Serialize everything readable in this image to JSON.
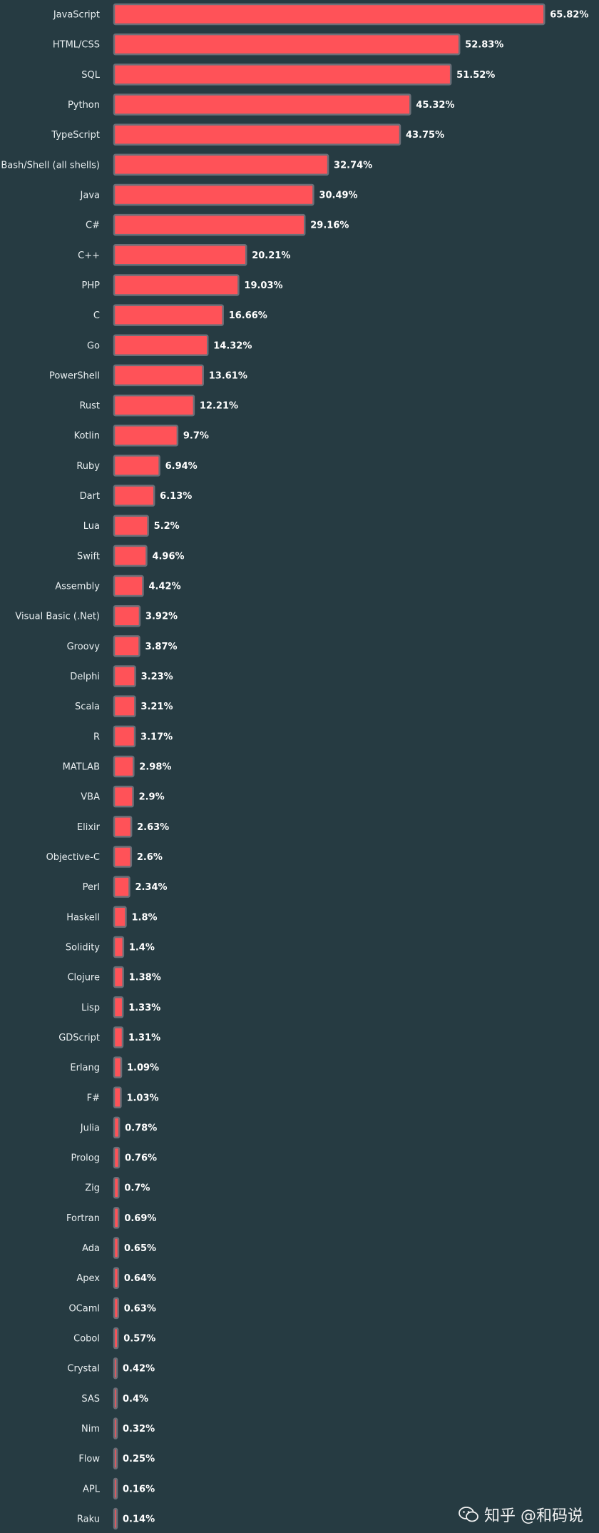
{
  "chart_data": {
    "type": "bar",
    "orientation": "horizontal",
    "categories": [
      "JavaScript",
      "HTML/CSS",
      "SQL",
      "Python",
      "TypeScript",
      "Bash/Shell (all shells)",
      "Java",
      "C#",
      "C++",
      "PHP",
      "C",
      "Go",
      "PowerShell",
      "Rust",
      "Kotlin",
      "Ruby",
      "Dart",
      "Lua",
      "Swift",
      "Assembly",
      "Visual Basic (.Net)",
      "Groovy",
      "Delphi",
      "Scala",
      "R",
      "MATLAB",
      "VBA",
      "Elixir",
      "Objective-C",
      "Perl",
      "Haskell",
      "Solidity",
      "Clojure",
      "Lisp",
      "GDScript",
      "Erlang",
      "F#",
      "Julia",
      "Prolog",
      "Zig",
      "Fortran",
      "Ada",
      "Apex",
      "OCaml",
      "Cobol",
      "Crystal",
      "SAS",
      "Nim",
      "Flow",
      "APL",
      "Raku"
    ],
    "values": [
      65.82,
      52.83,
      51.52,
      45.32,
      43.75,
      32.74,
      30.49,
      29.16,
      20.21,
      19.03,
      16.66,
      14.32,
      13.61,
      12.21,
      9.7,
      6.94,
      6.13,
      5.2,
      4.96,
      4.42,
      3.92,
      3.87,
      3.23,
      3.21,
      3.17,
      2.98,
      2.9,
      2.63,
      2.6,
      2.34,
      1.8,
      1.4,
      1.38,
      1.33,
      1.31,
      1.09,
      1.03,
      0.78,
      0.76,
      0.7,
      0.69,
      0.65,
      0.64,
      0.63,
      0.57,
      0.42,
      0.4,
      0.32,
      0.25,
      0.16,
      0.14
    ],
    "value_labels": [
      "65.82%",
      "52.83%",
      "51.52%",
      "45.32%",
      "43.75%",
      "32.74%",
      "30.49%",
      "29.16%",
      "20.21%",
      "19.03%",
      "16.66%",
      "14.32%",
      "13.61%",
      "12.21%",
      "9.7%",
      "6.94%",
      "6.13%",
      "5.2%",
      "4.96%",
      "4.42%",
      "3.92%",
      "3.87%",
      "3.23%",
      "3.21%",
      "3.17%",
      "2.98%",
      "2.9%",
      "2.63%",
      "2.6%",
      "2.34%",
      "1.8%",
      "1.4%",
      "1.38%",
      "1.33%",
      "1.31%",
      "1.09%",
      "1.03%",
      "0.78%",
      "0.76%",
      "0.7%",
      "0.69%",
      "0.65%",
      "0.64%",
      "0.63%",
      "0.57%",
      "0.42%",
      "0.4%",
      "0.32%",
      "0.25%",
      "0.16%",
      "0.14%"
    ],
    "title": "",
    "xlabel": "",
    "ylabel": "",
    "grid": false,
    "legend": "none",
    "colors": {
      "bar": "#ff5258",
      "bar_border": "#6b6f78",
      "background": "#263b42"
    }
  },
  "watermark": {
    "icon": "wechat-icon",
    "text": "知乎 @和码说"
  }
}
